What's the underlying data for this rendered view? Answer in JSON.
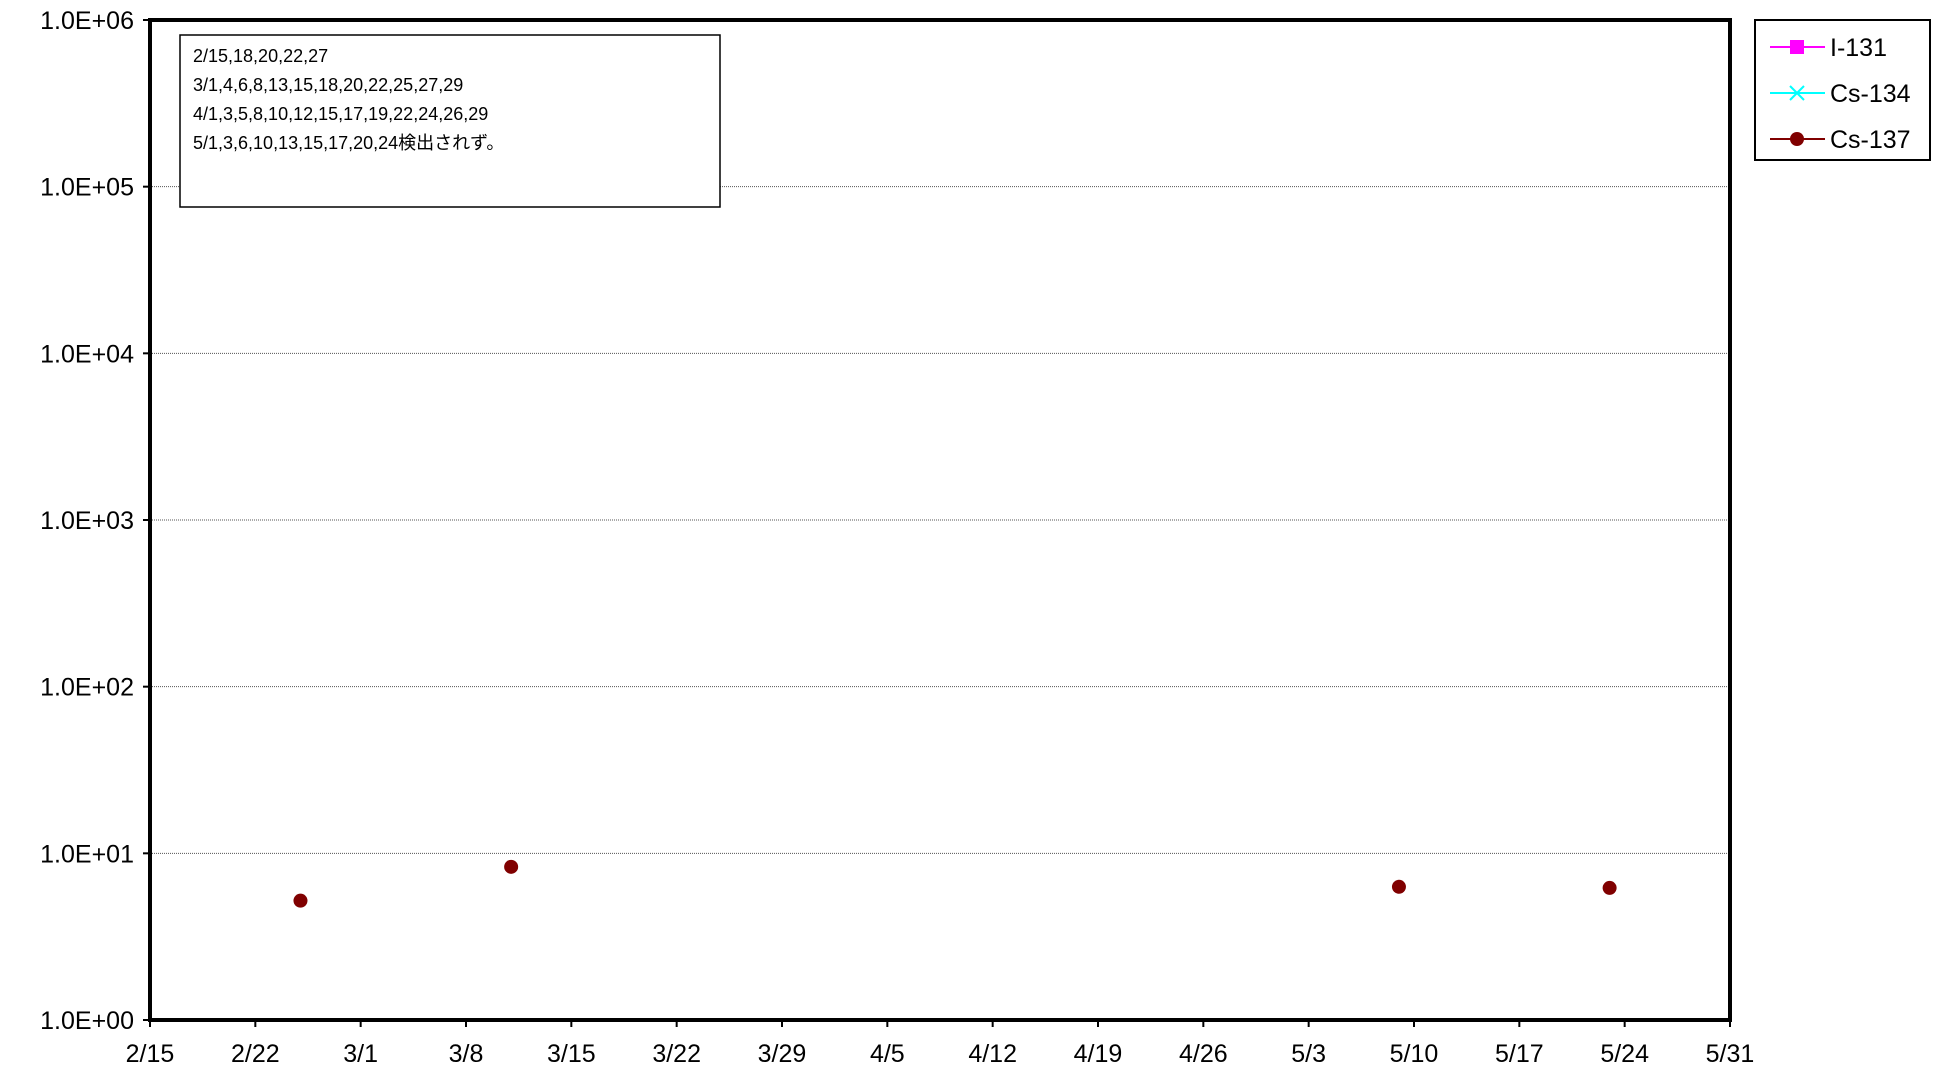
{
  "chart_data": {
    "type": "scatter",
    "title": "",
    "xlabel": "",
    "ylabel": "",
    "y_scale": "log",
    "ylim": [
      1,
      1000000
    ],
    "y_ticks": [
      "1.0E+00",
      "1.0E+01",
      "1.0E+02",
      "1.0E+03",
      "1.0E+04",
      "1.0E+05",
      "1.0E+06"
    ],
    "x_ticks": [
      "2/15",
      "2/22",
      "3/1",
      "3/8",
      "3/15",
      "3/22",
      "3/29",
      "4/5",
      "4/12",
      "4/19",
      "4/26",
      "5/3",
      "5/10",
      "5/17",
      "5/24",
      "5/31"
    ],
    "xlim": [
      "2/15",
      "5/31"
    ],
    "grid": "horizontal major gridlines",
    "legend_position": "right",
    "series": [
      {
        "name": "I-131",
        "color": "#ff00ff",
        "marker": "square",
        "x": [],
        "y": []
      },
      {
        "name": "Cs-134",
        "color": "#00ffff",
        "marker": "x",
        "x": [],
        "y": []
      },
      {
        "name": "Cs-137",
        "color": "#800000",
        "marker": "circle",
        "x": [
          "2/25",
          "3/11",
          "5/9",
          "5/23"
        ],
        "y": [
          5.2,
          8.3,
          6.3,
          6.2
        ]
      }
    ],
    "annotation": {
      "lines": [
        "2/15,18,20,22,27",
        "3/1,4,6,8,13,15,18,20,22,25,27,29",
        "4/1,3,5,8,10,12,15,17,19,22,24,26,29",
        "5/1,3,6,10,13,15,17,20,24検出されず。"
      ]
    }
  }
}
